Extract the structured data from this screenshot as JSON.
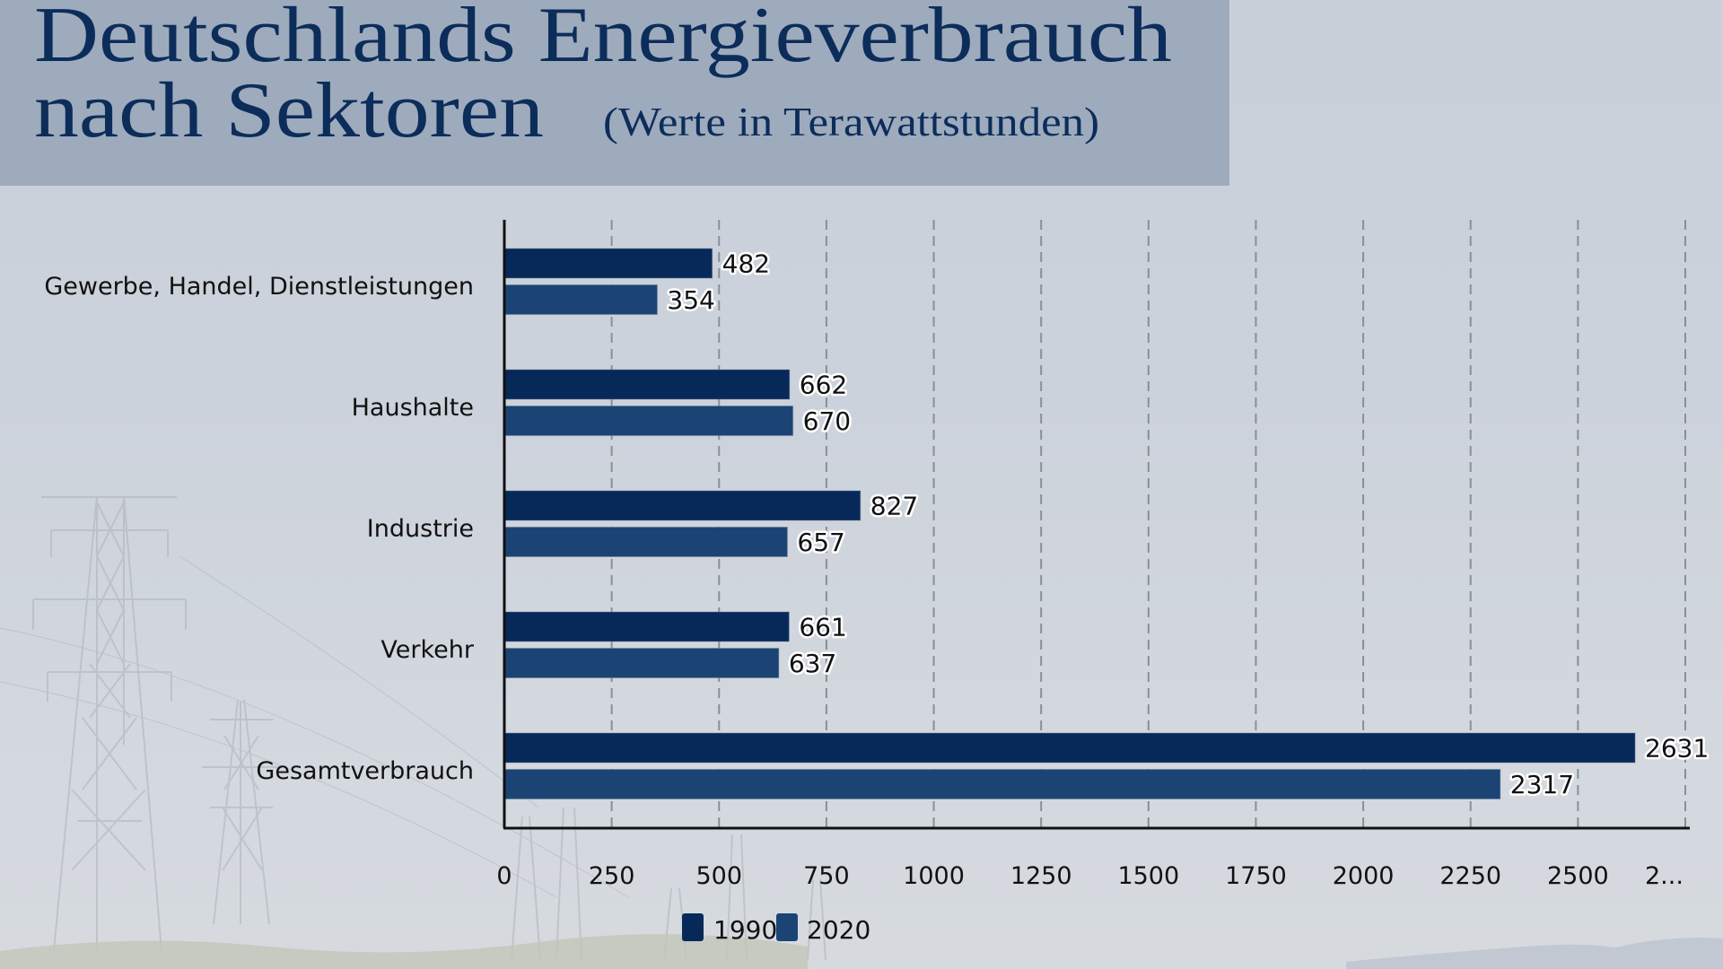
{
  "header": {
    "title_line1": "Deutschlands Energieverbrauch",
    "title_line2": "nach Sektoren",
    "subtitle": "(Werte in Terawattstunden)"
  },
  "colors": {
    "series_1990": "#07295a",
    "series_2020": "#1b4475",
    "header_bg": "#9eabbd",
    "title_text": "#0c2d5a"
  },
  "chart_data": {
    "type": "bar",
    "orientation": "horizontal",
    "title": "Deutschlands Energieverbrauch nach Sektoren",
    "subtitle": "(Werte in Terawattstunden)",
    "xlabel": "",
    "ylabel": "",
    "categories": [
      "Gewerbe, Handel, Dienstleistungen",
      "Haushalte",
      "Industrie",
      "Verkehr",
      "Gesamtverbrauch"
    ],
    "series": [
      {
        "name": "1990",
        "values": [
          482,
          662,
          827,
          661,
          2631
        ]
      },
      {
        "name": "2020",
        "values": [
          354,
          670,
          657,
          637,
          2317
        ]
      }
    ],
    "xlim": [
      0,
      2750
    ],
    "x_ticks": [
      0,
      250,
      500,
      750,
      1000,
      1250,
      1500,
      1750,
      2000,
      2250,
      2500,
      2750
    ],
    "x_tick_labels": [
      "0",
      "250",
      "500",
      "750",
      "1000",
      "1250",
      "1500",
      "1750",
      "2000",
      "2250",
      "2500",
      "2..."
    ],
    "grid": "vertical dashed",
    "legend": {
      "position": "bottom-center",
      "entries": [
        "1990",
        "2020"
      ]
    },
    "data_labels": true
  }
}
